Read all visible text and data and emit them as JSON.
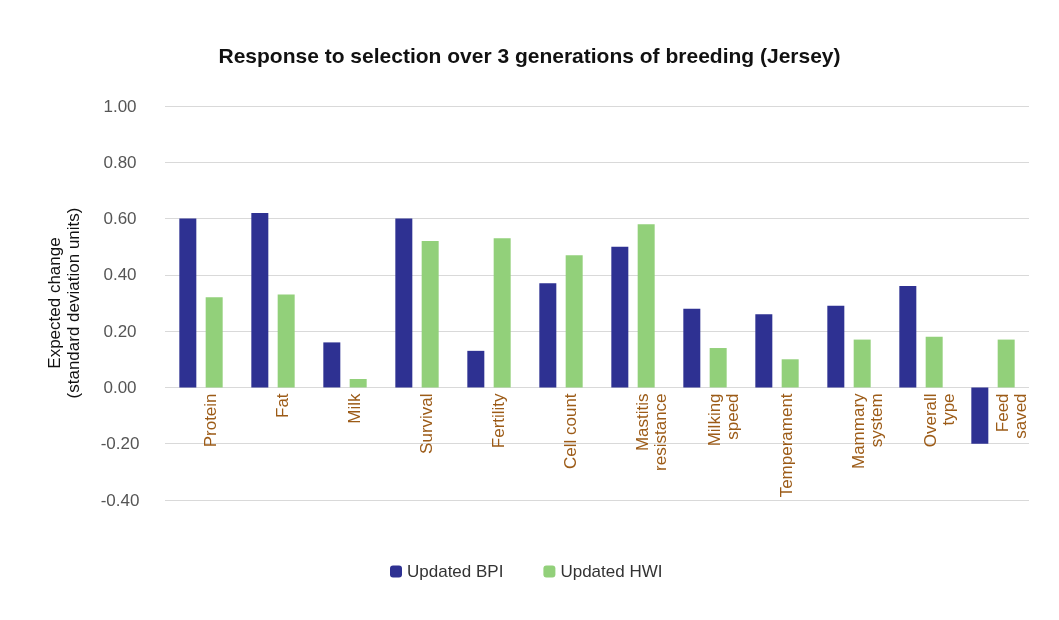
{
  "chart_data": {
    "type": "bar",
    "title": "Response to selection over 3 generations of breeding (Jersey)",
    "ylabel": "Expected change\n(standard deviation units)",
    "categories": [
      "Protein",
      "Fat",
      "Milk",
      "Survival",
      "Fertility",
      "Cell count",
      "Mastitis\nresistance",
      "Milking\nspeed",
      "Temperament",
      "Mammary\nsystem",
      "Overall\ntype",
      "Feed\nsaved"
    ],
    "series": [
      {
        "name": "Updated BPI",
        "color": "#2e3192",
        "values": [
          0.6,
          0.62,
          0.16,
          0.6,
          0.13,
          0.37,
          0.5,
          0.28,
          0.26,
          0.29,
          0.36,
          -0.2
        ]
      },
      {
        "name": "Updated HWI",
        "color": "#92d07a",
        "values": [
          0.32,
          0.33,
          0.03,
          0.52,
          0.53,
          0.47,
          0.58,
          0.14,
          0.1,
          0.17,
          0.18,
          0.17
        ]
      }
    ],
    "ylim": [
      -0.4,
      1.0
    ],
    "yticks": [
      {
        "value": -0.4,
        "label": "-0.40"
      },
      {
        "value": -0.2,
        "label": "-0.20"
      },
      {
        "value": 0,
        "label": "0.00"
      },
      {
        "value": 0.2,
        "label": "0.20"
      },
      {
        "value": 0.4,
        "label": "0.40"
      },
      {
        "value": 0.6,
        "label": "0.60"
      },
      {
        "value": 0.8,
        "label": "0.80"
      },
      {
        "value": 1.0,
        "label": "1.00"
      }
    ],
    "grid": "y",
    "legend": "bottom"
  }
}
